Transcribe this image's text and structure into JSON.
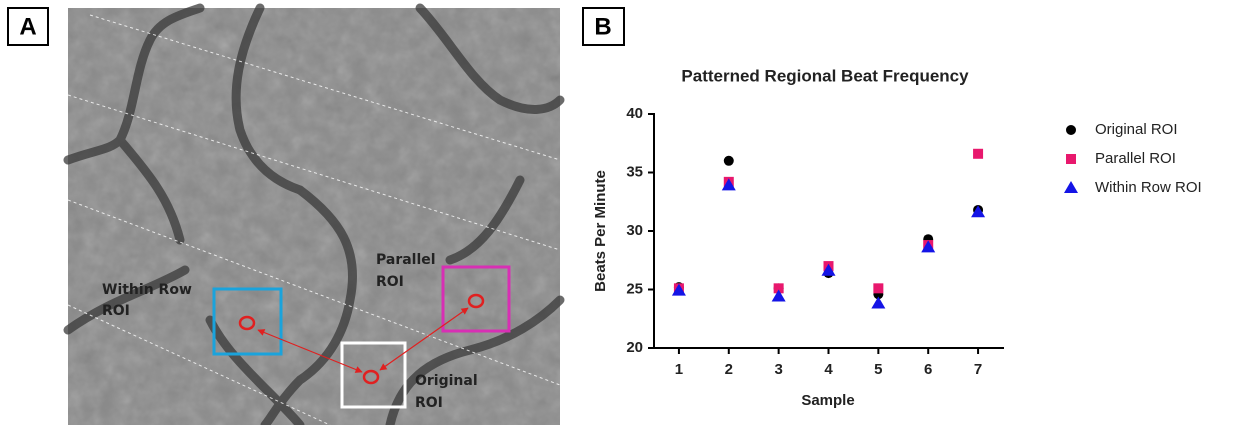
{
  "panel_labels": [
    "A",
    "B"
  ],
  "panel_a": {
    "labels": [
      {
        "lines": [
          "Within Row",
          "ROI"
        ]
      },
      {
        "lines": [
          "Parallel",
          "ROI"
        ]
      },
      {
        "lines": [
          "Original",
          "ROI"
        ]
      }
    ]
  },
  "chart_data": {
    "type": "scatter",
    "title": "Patterned Regional Beat Frequency",
    "x_label": "Sample",
    "y_label": "Beats Per Minute",
    "categories": [
      "1",
      "2",
      "3",
      "4",
      "5",
      "6",
      "7"
    ],
    "ylim": [
      20,
      40
    ],
    "yticks": [
      20,
      25,
      30,
      35,
      40
    ],
    "series": [
      {
        "name": "Original ROI",
        "color": "#000000",
        "marker": "circle",
        "values": [
          25.2,
          36.0,
          25.1,
          26.4,
          24.6,
          29.3,
          31.8
        ]
      },
      {
        "name": "Parallel ROI",
        "color": "#e8186d",
        "marker": "square",
        "values": [
          25.1,
          34.2,
          25.1,
          27.0,
          25.1,
          28.8,
          36.6
        ]
      },
      {
        "name": "Within Row ROI",
        "color": "#1414e6",
        "marker": "triangle",
        "values": [
          24.9,
          33.9,
          24.4,
          26.6,
          23.8,
          28.6,
          31.6
        ]
      }
    ]
  }
}
